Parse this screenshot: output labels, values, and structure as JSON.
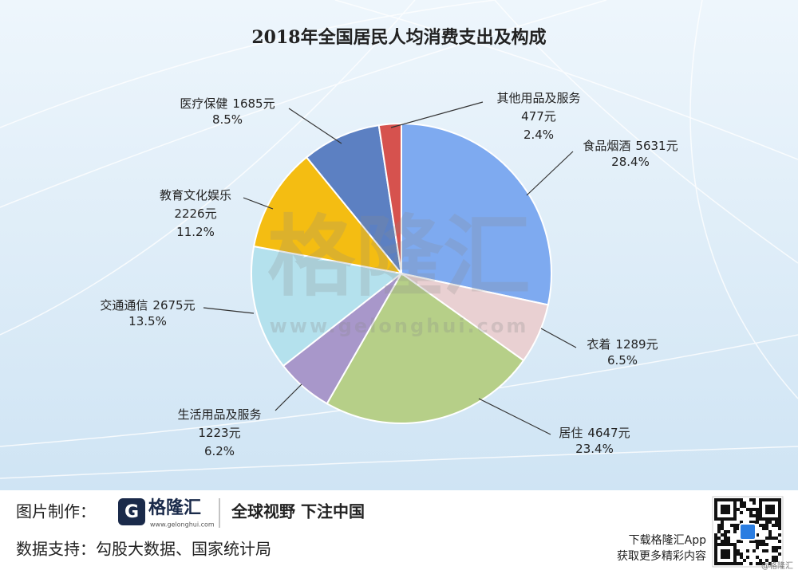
{
  "chart_data": {
    "type": "pie",
    "title": "2018年全国居民人均消费支出及构成",
    "categories": [
      "食品烟酒",
      "衣着",
      "居住",
      "生活用品及服务",
      "交通通信",
      "教育文化娱乐",
      "医疗保健",
      "其他用品及服务"
    ],
    "values": [
      5631,
      1289,
      4647,
      1223,
      2675,
      2226,
      1685,
      477
    ],
    "value_labels": [
      "5631元",
      "1289元",
      "4647元",
      "1223元",
      "2675元",
      "2226元",
      "1685元",
      "477元"
    ],
    "percent_labels": [
      "28.4%",
      "6.5%",
      "23.4%",
      "6.2%",
      "13.5%",
      "11.2%",
      "8.5%",
      "2.4%"
    ],
    "colors": [
      "#7eaaf0",
      "#e9d0d2",
      "#b6cf88",
      "#a897ca",
      "#b4e1ed",
      "#f4bd12",
      "#5c80c2",
      "#d6524e"
    ]
  },
  "watermark": {
    "name": "格隆汇",
    "url": "www.gelonghui.com"
  },
  "footer": {
    "made_by_label": "图片制作：",
    "logo_name": "格隆汇",
    "logo_url": "www.gelonghui.com",
    "slogan": "全球视野 下注中国",
    "source": "数据支持：勾股大数据、国家统计局",
    "app_line1": "下载格隆汇App",
    "app_line2": "获取更多精彩内容",
    "corner": "@格隆汇"
  }
}
